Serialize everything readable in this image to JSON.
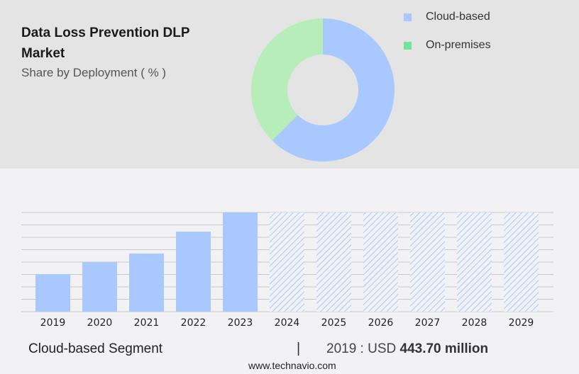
{
  "header": {
    "title": "Data Loss Prevention DLP Market",
    "subtitle": "Share by Deployment ( % )"
  },
  "chart_data": [
    {
      "type": "pie",
      "variant": "donut",
      "legend_position": "right",
      "slices": [
        {
          "name": "Cloud-based",
          "value": 62.5,
          "color": "#a8c8fe"
        },
        {
          "name": "On-premises",
          "value": 37.5,
          "color": "#b6edb8"
        }
      ],
      "legend_colors": {
        "Cloud-based": "#a8c8fe",
        "On-premises": "#72e49a"
      }
    },
    {
      "type": "bar",
      "categories": [
        "2019",
        "2020",
        "2021",
        "2022",
        "2023",
        "2024",
        "2025",
        "2026",
        "2027",
        "2028",
        "2029"
      ],
      "values": [
        443.7,
        586,
        687,
        946,
        1172,
        null,
        null,
        null,
        null,
        null,
        null
      ],
      "forecast_categories": [
        "2024",
        "2025",
        "2026",
        "2027",
        "2028",
        "2029"
      ],
      "forecast_style": "hatched",
      "ylim": [
        0,
        1172
      ],
      "grid": true,
      "color": "#a8c8fe",
      "units": "USD million"
    }
  ],
  "footer": {
    "segment": "Cloud-based Segment",
    "separator": "|",
    "year_label": "2019 : USD ",
    "value": "443.70 million",
    "site": "www.technavio.com"
  }
}
